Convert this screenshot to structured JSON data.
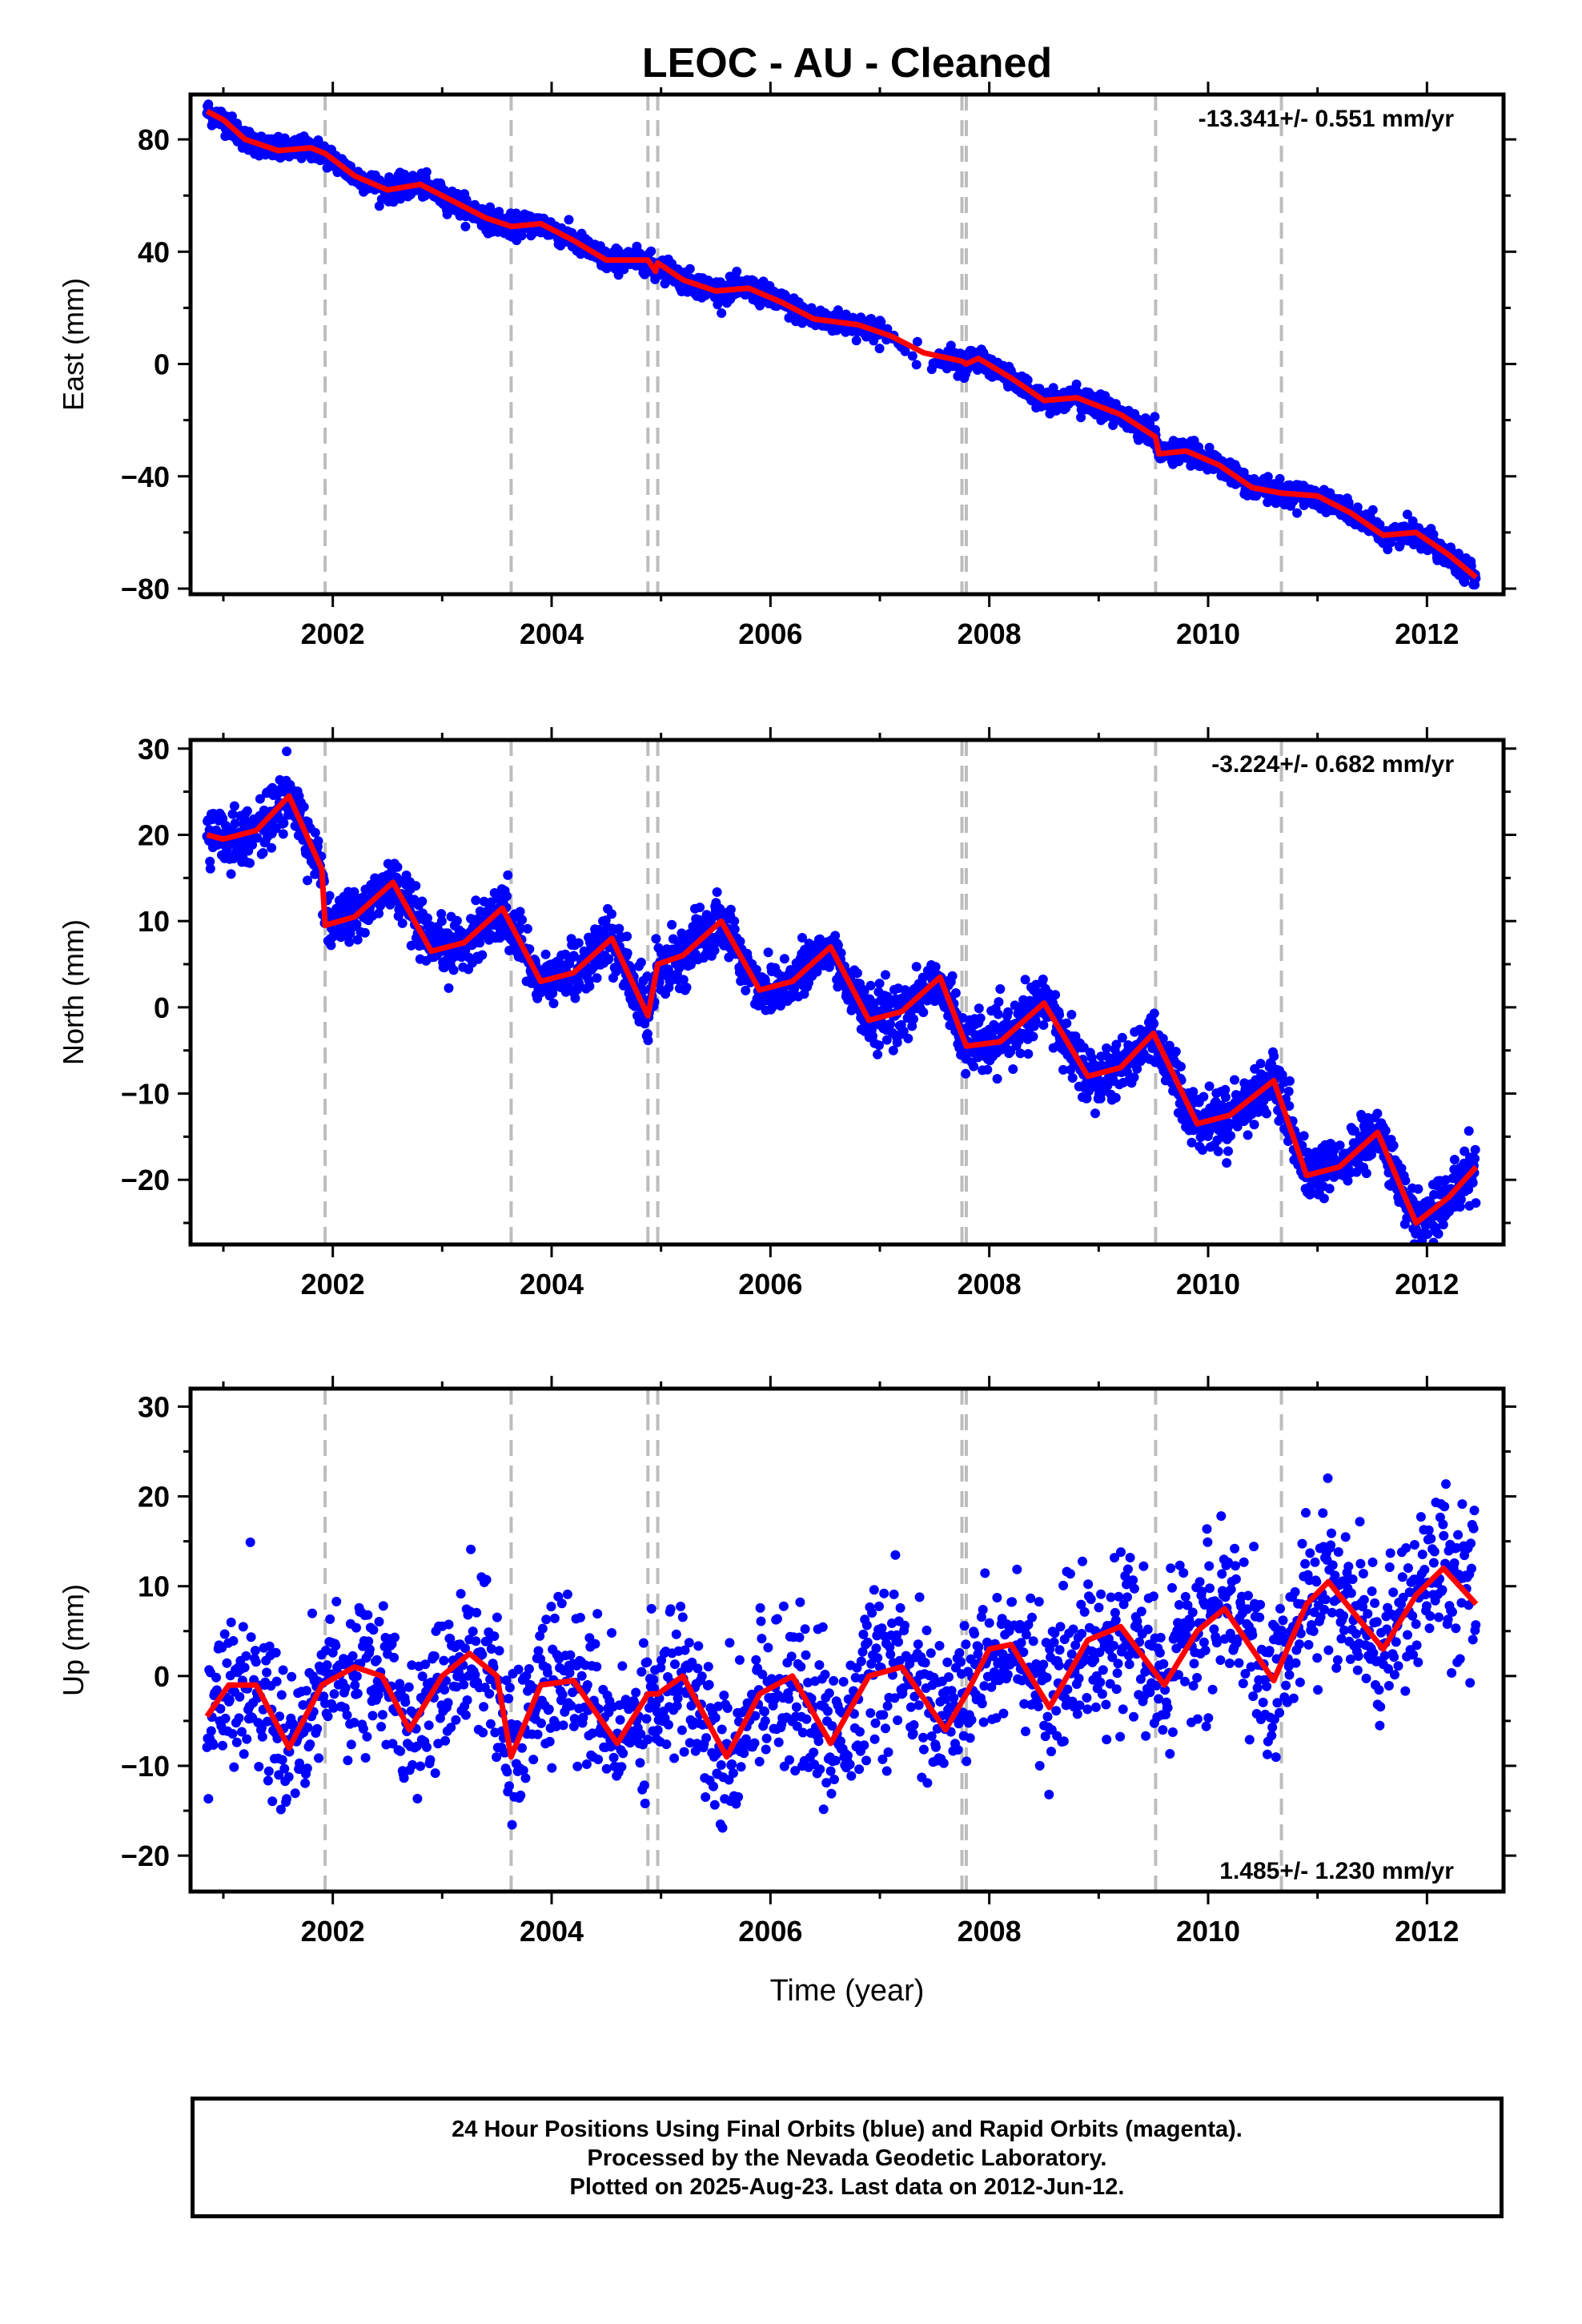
{
  "title": "LEOC  - AU - Cleaned",
  "xlabel": "Time (year)",
  "footer": {
    "line1": "24 Hour Positions Using Final Orbits (blue) and Rapid Orbits (magenta).",
    "line2": "Processed by the Nevada Geodetic Laboratory.",
    "line3": "Plotted on 2025-Aug-23. Last data on 2012-Jun-12."
  },
  "colors": {
    "data": "#0000ff",
    "model": "#ff0000",
    "breaks": "#bdbdbd",
    "axes": "#000000"
  },
  "chart_data": [
    {
      "type": "scatter",
      "name": "east",
      "ylabel": "East (mm)",
      "rate": "-13.341+/- 0.551 mm/yr",
      "rate_position": "top-right",
      "xlim": [
        2000.7,
        2012.7
      ],
      "ylim": [
        -82,
        96
      ],
      "xticks": [
        2002,
        2004,
        2006,
        2008,
        2010,
        2012
      ],
      "yticks": [
        -80,
        -40,
        0,
        40,
        80
      ],
      "breaks": [
        2001.93,
        2003.63,
        2004.88,
        2004.97,
        2007.75,
        2007.79,
        2009.52,
        2010.67
      ],
      "data_range": [
        2000.85,
        2012.45
      ],
      "model_fit": [
        [
          2000.85,
          90
        ],
        [
          2001.0,
          87
        ],
        [
          2001.2,
          80
        ],
        [
          2001.5,
          76
        ],
        [
          2001.8,
          77
        ],
        [
          2001.93,
          75
        ],
        [
          2002.2,
          67
        ],
        [
          2002.5,
          62
        ],
        [
          2002.8,
          64
        ],
        [
          2003.1,
          58
        ],
        [
          2003.4,
          52
        ],
        [
          2003.63,
          49
        ],
        [
          2003.9,
          50
        ],
        [
          2004.2,
          44
        ],
        [
          2004.5,
          37
        ],
        [
          2004.88,
          37
        ],
        [
          2004.95,
          33
        ],
        [
          2004.97,
          36
        ],
        [
          2005.2,
          30
        ],
        [
          2005.5,
          26
        ],
        [
          2005.8,
          27
        ],
        [
          2006.1,
          22
        ],
        [
          2006.4,
          16
        ],
        [
          2006.8,
          14
        ],
        [
          2007.1,
          10
        ],
        [
          2007.4,
          4
        ],
        [
          2007.75,
          1
        ],
        [
          2007.79,
          0
        ],
        [
          2007.9,
          2
        ],
        [
          2008.2,
          -5
        ],
        [
          2008.5,
          -13
        ],
        [
          2008.8,
          -12
        ],
        [
          2009.2,
          -18
        ],
        [
          2009.52,
          -26
        ],
        [
          2009.55,
          -32
        ],
        [
          2009.8,
          -31
        ],
        [
          2010.1,
          -36
        ],
        [
          2010.4,
          -44
        ],
        [
          2010.67,
          -46
        ],
        [
          2011.0,
          -47
        ],
        [
          2011.3,
          -53
        ],
        [
          2011.6,
          -61
        ],
        [
          2011.9,
          -60
        ],
        [
          2012.2,
          -68
        ],
        [
          2012.45,
          -76
        ]
      ]
    },
    {
      "type": "scatter",
      "name": "north",
      "ylabel": "North (mm)",
      "rate": "-3.224+/- 0.682 mm/yr",
      "rate_position": "top-right",
      "xlim": [
        2000.7,
        2012.7
      ],
      "ylim": [
        -27.5,
        31
      ],
      "xticks": [
        2002,
        2004,
        2006,
        2008,
        2010,
        2012
      ],
      "yticks": [
        -20,
        -10,
        0,
        10,
        20,
        30
      ],
      "breaks": [
        2001.93,
        2003.63,
        2004.88,
        2004.97,
        2007.75,
        2007.79,
        2009.52,
        2010.67
      ],
      "data_range": [
        2000.85,
        2012.45
      ],
      "model_fit": [
        [
          2000.85,
          20
        ],
        [
          2001.0,
          19.5
        ],
        [
          2001.3,
          20.5
        ],
        [
          2001.6,
          24.5
        ],
        [
          2001.9,
          16
        ],
        [
          2001.93,
          9.5
        ],
        [
          2002.2,
          10.5
        ],
        [
          2002.55,
          14.5
        ],
        [
          2002.9,
          6.5
        ],
        [
          2003.2,
          7.5
        ],
        [
          2003.55,
          11.5
        ],
        [
          2003.9,
          3
        ],
        [
          2004.2,
          4
        ],
        [
          2004.55,
          8
        ],
        [
          2004.88,
          -1
        ],
        [
          2004.97,
          5
        ],
        [
          2005.2,
          6
        ],
        [
          2005.55,
          10
        ],
        [
          2005.9,
          2
        ],
        [
          2006.2,
          3
        ],
        [
          2006.55,
          7
        ],
        [
          2006.9,
          -1.5
        ],
        [
          2007.2,
          -0.5
        ],
        [
          2007.55,
          3.5
        ],
        [
          2007.79,
          -4.5
        ],
        [
          2008.1,
          -4
        ],
        [
          2008.5,
          0.5
        ],
        [
          2008.9,
          -8
        ],
        [
          2009.2,
          -7
        ],
        [
          2009.5,
          -3
        ],
        [
          2009.9,
          -13.5
        ],
        [
          2010.2,
          -12.5
        ],
        [
          2010.6,
          -8.5
        ],
        [
          2010.9,
          -19.5
        ],
        [
          2011.2,
          -18.5
        ],
        [
          2011.55,
          -14.5
        ],
        [
          2011.9,
          -25
        ],
        [
          2012.2,
          -22
        ],
        [
          2012.45,
          -18.5
        ]
      ]
    },
    {
      "type": "scatter",
      "name": "up",
      "ylabel": "Up (mm)",
      "rate": "1.485+/- 1.230 mm/yr",
      "rate_position": "bottom-right",
      "xlim": [
        2000.7,
        2012.7
      ],
      "ylim": [
        -24,
        32
      ],
      "xticks": [
        2002,
        2004,
        2006,
        2008,
        2010,
        2012
      ],
      "yticks": [
        -20,
        -10,
        0,
        10,
        20,
        30
      ],
      "breaks": [
        2001.93,
        2003.63,
        2004.88,
        2004.97,
        2007.75,
        2007.79,
        2009.52,
        2010.67
      ],
      "data_range": [
        2000.85,
        2012.45
      ],
      "model_fit": [
        [
          2000.85,
          -4.5
        ],
        [
          2001.05,
          -1
        ],
        [
          2001.3,
          -1
        ],
        [
          2001.6,
          -8
        ],
        [
          2001.9,
          -1
        ],
        [
          2002.2,
          1
        ],
        [
          2002.45,
          0
        ],
        [
          2002.7,
          -6
        ],
        [
          2003.0,
          0
        ],
        [
          2003.25,
          2.5
        ],
        [
          2003.5,
          0
        ],
        [
          2003.63,
          -9
        ],
        [
          2003.9,
          -1
        ],
        [
          2004.2,
          -0.5
        ],
        [
          2004.6,
          -7.5
        ],
        [
          2004.88,
          -2
        ],
        [
          2004.97,
          -2
        ],
        [
          2005.2,
          0
        ],
        [
          2005.6,
          -9
        ],
        [
          2005.9,
          -2
        ],
        [
          2006.2,
          0
        ],
        [
          2006.55,
          -7.5
        ],
        [
          2006.9,
          0
        ],
        [
          2007.2,
          1
        ],
        [
          2007.6,
          -6
        ],
        [
          2007.79,
          -2
        ],
        [
          2008.0,
          3
        ],
        [
          2008.2,
          3.5
        ],
        [
          2008.55,
          -3.5
        ],
        [
          2008.9,
          4
        ],
        [
          2009.2,
          5.5
        ],
        [
          2009.6,
          -1
        ],
        [
          2009.9,
          5
        ],
        [
          2010.15,
          7.5
        ],
        [
          2010.6,
          -0.5
        ],
        [
          2010.9,
          8
        ],
        [
          2011.1,
          10.5
        ],
        [
          2011.6,
          3
        ],
        [
          2011.9,
          9
        ],
        [
          2012.15,
          12
        ],
        [
          2012.45,
          8
        ]
      ]
    }
  ]
}
